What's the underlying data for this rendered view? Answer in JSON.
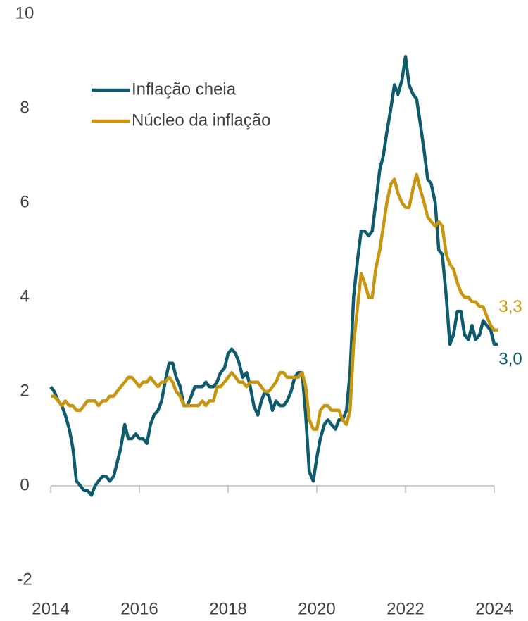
{
  "chart_data": {
    "type": "line",
    "x": [
      2014,
      2014.08,
      2014.17,
      2014.25,
      2014.33,
      2014.42,
      2014.5,
      2014.58,
      2014.67,
      2014.75,
      2014.83,
      2014.92,
      2015,
      2015.08,
      2015.17,
      2015.25,
      2015.33,
      2015.42,
      2015.5,
      2015.58,
      2015.67,
      2015.75,
      2015.83,
      2015.92,
      2016,
      2016.08,
      2016.17,
      2016.25,
      2016.33,
      2016.42,
      2016.5,
      2016.58,
      2016.67,
      2016.75,
      2016.83,
      2016.92,
      2017,
      2017.08,
      2017.17,
      2017.25,
      2017.33,
      2017.42,
      2017.5,
      2017.58,
      2017.67,
      2017.75,
      2017.83,
      2017.92,
      2018,
      2018.08,
      2018.17,
      2018.25,
      2018.33,
      2018.42,
      2018.5,
      2018.58,
      2018.67,
      2018.75,
      2018.83,
      2018.92,
      2019,
      2019.08,
      2019.17,
      2019.25,
      2019.33,
      2019.42,
      2019.5,
      2019.58,
      2019.67,
      2019.75,
      2019.83,
      2019.92,
      2020,
      2020.08,
      2020.17,
      2020.25,
      2020.33,
      2020.42,
      2020.5,
      2020.58,
      2020.67,
      2020.75,
      2020.83,
      2020.92,
      2021,
      2021.08,
      2021.17,
      2021.25,
      2021.33,
      2021.42,
      2021.5,
      2021.58,
      2021.67,
      2021.75,
      2021.83,
      2021.92,
      2022,
      2022.08,
      2022.17,
      2022.25,
      2022.33,
      2022.42,
      2022.5,
      2022.58,
      2022.67,
      2022.75,
      2022.83,
      2022.92,
      2023,
      2023.08,
      2023.17,
      2023.25,
      2023.33,
      2023.42,
      2023.5,
      2023.58,
      2023.67,
      2023.75,
      2023.83,
      2023.92,
      2024,
      2024.08
    ],
    "series": [
      {
        "name": "Inflação cheia",
        "color": "#0f5b6e",
        "values": [
          2.1,
          2.0,
          1.8,
          1.7,
          1.5,
          1.2,
          0.8,
          0.1,
          0.0,
          -0.1,
          -0.1,
          -0.2,
          0.0,
          0.1,
          0.2,
          0.2,
          0.1,
          0.2,
          0.5,
          0.8,
          1.3,
          1.0,
          1.0,
          1.1,
          1.0,
          1.0,
          0.9,
          1.3,
          1.5,
          1.6,
          1.8,
          2.2,
          2.6,
          2.6,
          2.3,
          2.1,
          1.7,
          1.7,
          1.9,
          2.1,
          2.1,
          2.1,
          2.2,
          2.1,
          2.1,
          2.2,
          2.4,
          2.5,
          2.8,
          2.9,
          2.8,
          2.6,
          2.3,
          2.4,
          2.1,
          1.7,
          1.5,
          1.8,
          2.0,
          1.9,
          1.6,
          1.8,
          1.7,
          1.7,
          1.8,
          2.0,
          2.3,
          2.4,
          2.4,
          1.5,
          0.3,
          0.1,
          0.6,
          1.0,
          1.3,
          1.4,
          1.3,
          1.2,
          1.4,
          1.4,
          1.6,
          2.4,
          4.0,
          4.8,
          5.4,
          5.4,
          5.3,
          5.4,
          6.0,
          6.7,
          7.0,
          7.5,
          8.0,
          8.5,
          8.3,
          8.6,
          9.1,
          8.5,
          8.3,
          8.2,
          7.7,
          7.1,
          6.5,
          6.4,
          6.0,
          5.0,
          4.9,
          4.0,
          3.0,
          3.2,
          3.7,
          3.7,
          3.2,
          3.1,
          3.4,
          3.1,
          3.2,
          3.5,
          3.4,
          3.3,
          3.0,
          3.0
        ]
      },
      {
        "name": "Núcleo da inflação",
        "color": "#c8960e",
        "values": [
          1.9,
          1.9,
          1.8,
          1.7,
          1.8,
          1.7,
          1.7,
          1.6,
          1.6,
          1.7,
          1.8,
          1.8,
          1.8,
          1.7,
          1.8,
          1.8,
          1.9,
          1.9,
          2.0,
          2.1,
          2.2,
          2.3,
          2.3,
          2.2,
          2.1,
          2.2,
          2.2,
          2.3,
          2.2,
          2.1,
          2.2,
          2.2,
          2.3,
          2.2,
          2.0,
          1.9,
          1.7,
          1.7,
          1.7,
          1.7,
          1.7,
          1.8,
          1.7,
          1.8,
          1.8,
          2.1,
          2.1,
          2.2,
          2.3,
          2.4,
          2.3,
          2.2,
          2.2,
          2.1,
          2.2,
          2.2,
          2.2,
          2.1,
          2.0,
          2.0,
          2.1,
          2.2,
          2.4,
          2.4,
          2.3,
          2.3,
          2.3,
          2.3,
          2.4,
          2.1,
          1.4,
          1.2,
          1.2,
          1.6,
          1.7,
          1.7,
          1.6,
          1.6,
          1.6,
          1.4,
          1.3,
          1.6,
          3.0,
          3.8,
          4.5,
          4.3,
          4.0,
          4.0,
          4.6,
          5.0,
          5.5,
          6.0,
          6.4,
          6.5,
          6.2,
          6.0,
          5.9,
          5.9,
          6.3,
          6.6,
          6.3,
          6.0,
          5.7,
          5.6,
          5.5,
          5.6,
          5.5,
          4.9,
          4.7,
          4.6,
          4.3,
          4.1,
          4.0,
          4.0,
          3.9,
          3.9,
          3.8,
          3.8,
          3.6,
          3.4,
          3.3,
          3.3
        ]
      }
    ],
    "annotations": [
      {
        "text": "3,3",
        "x": 2024.08,
        "y": 3.3,
        "color": "#c8960e"
      },
      {
        "text": "3,0",
        "x": 2024.08,
        "y": 3.0,
        "color": "#0f5b6e"
      }
    ],
    "xlim": [
      2014,
      2024
    ],
    "xticks": [
      2014,
      2016,
      2018,
      2020,
      2022,
      2024
    ],
    "ylim": [
      -2,
      10
    ],
    "yticks": [
      -2,
      0,
      2,
      4,
      6,
      8,
      10
    ],
    "grid": false
  }
}
